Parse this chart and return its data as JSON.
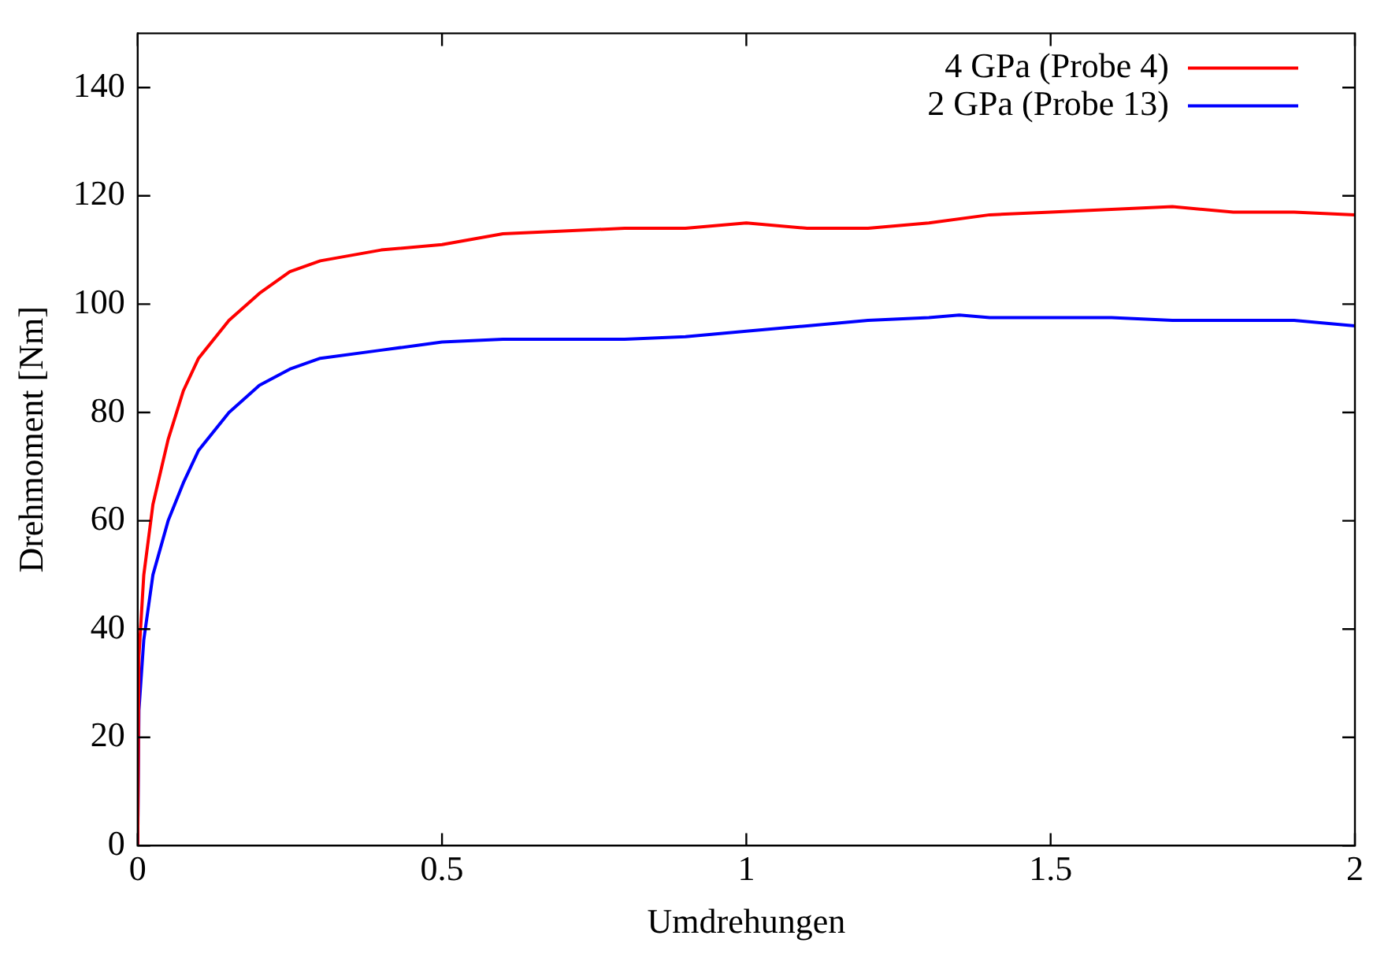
{
  "chart_data": {
    "type": "line",
    "xlabel": "Umdrehungen",
    "ylabel": "Drehmoment [Nm]",
    "xlim": [
      0,
      2
    ],
    "xticks": [
      0,
      0.5,
      1,
      1.5,
      2
    ],
    "ylim": [
      0,
      150
    ],
    "yticks": [
      0,
      20,
      40,
      60,
      80,
      100,
      120,
      140
    ],
    "grid": false,
    "legend": "top right",
    "marker": "none",
    "line_style": "solid",
    "series": [
      {
        "name": "4 GPa (Probe 4)",
        "color": "#ff0000",
        "x": [
          0,
          0.002,
          0.01,
          0.025,
          0.05,
          0.075,
          0.1,
          0.15,
          0.2,
          0.25,
          0.3,
          0.4,
          0.5,
          0.6,
          0.7,
          0.8,
          0.9,
          1.0,
          1.1,
          1.2,
          1.3,
          1.4,
          1.5,
          1.6,
          1.7,
          1.8,
          1.9,
          2.0
        ],
        "values": [
          0,
          35,
          50,
          63,
          75,
          84,
          90,
          97,
          102,
          106,
          108,
          110,
          111,
          113,
          113.5,
          114,
          114,
          115,
          114,
          114,
          115,
          116.5,
          117,
          117.5,
          118,
          117,
          117,
          116.5
        ]
      },
      {
        "name": "2 GPa (Probe 13)",
        "color": "#0000ff",
        "x": [
          0,
          0.002,
          0.01,
          0.025,
          0.05,
          0.075,
          0.1,
          0.15,
          0.2,
          0.25,
          0.3,
          0.4,
          0.5,
          0.6,
          0.7,
          0.8,
          0.9,
          1.0,
          1.1,
          1.2,
          1.3,
          1.35,
          1.4,
          1.5,
          1.6,
          1.7,
          1.8,
          1.9,
          2.0
        ],
        "values": [
          0,
          25,
          38,
          50,
          60,
          67,
          73,
          80,
          85,
          88,
          90,
          91.5,
          93,
          93.5,
          93.5,
          93.5,
          94,
          95,
          96,
          97,
          97.5,
          98,
          97.5,
          97.5,
          97.5,
          97,
          97,
          97,
          96
        ]
      }
    ]
  }
}
